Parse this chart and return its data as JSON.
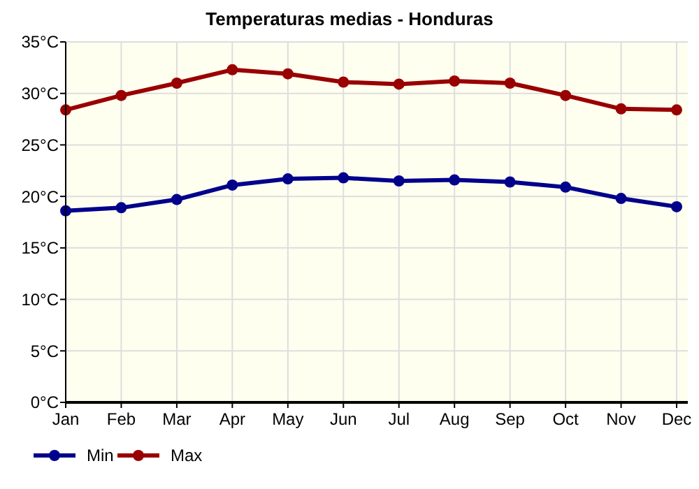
{
  "chart_data": {
    "type": "line",
    "title": "Temperaturas medias - Honduras",
    "categories": [
      "Jan",
      "Feb",
      "Mar",
      "Apr",
      "May",
      "Jun",
      "Jul",
      "Aug",
      "Sep",
      "Oct",
      "Nov",
      "Dec"
    ],
    "series": [
      {
        "name": "Min",
        "color": "#00008b",
        "values": [
          18.6,
          18.9,
          19.7,
          21.1,
          21.7,
          21.8,
          21.5,
          21.6,
          21.4,
          20.9,
          19.8,
          19.0
        ]
      },
      {
        "name": "Max",
        "color": "#990000",
        "values": [
          28.4,
          29.8,
          31.0,
          32.3,
          31.9,
          31.1,
          30.9,
          31.2,
          31.0,
          29.8,
          28.5,
          28.4
        ]
      }
    ],
    "ylim": [
      0,
      35
    ],
    "yticks": [
      {
        "value": 0,
        "label": "0°C"
      },
      {
        "value": 5,
        "label": "5°C"
      },
      {
        "value": 10,
        "label": "10°C"
      },
      {
        "value": 15,
        "label": "15°C"
      },
      {
        "value": 20,
        "label": "20°C"
      },
      {
        "value": 25,
        "label": "25°C"
      },
      {
        "value": 30,
        "label": "30°C"
      },
      {
        "value": 35,
        "label": "35°C"
      }
    ],
    "grid": true,
    "legend": "bottom left",
    "marker": "circle",
    "line_style": "solid"
  }
}
